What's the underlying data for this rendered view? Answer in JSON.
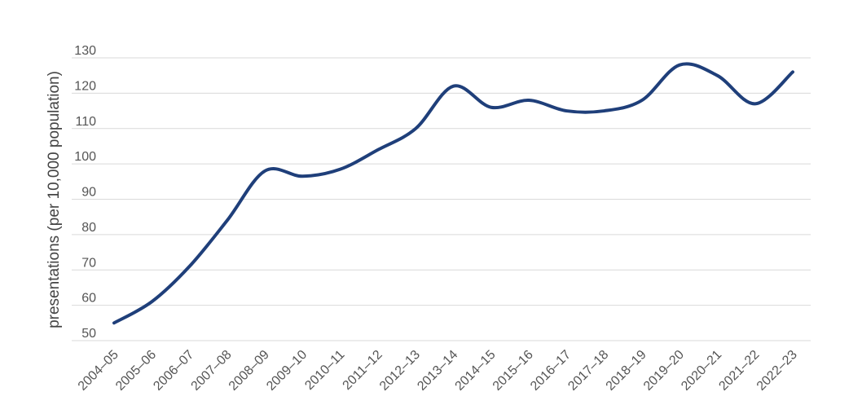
{
  "chart_data": {
    "type": "line",
    "title": "",
    "xlabel": "",
    "ylabel": "presentations (per 10,000 population)",
    "ylim": [
      50,
      130
    ],
    "yticks": [
      50,
      60,
      70,
      80,
      90,
      100,
      110,
      120,
      130
    ],
    "grid": "horizontal",
    "legend": "none",
    "categories": [
      "2004–05",
      "2005–06",
      "2006–07",
      "2007–08",
      "2008–09",
      "2009–10",
      "2010–11",
      "2011–12",
      "2012–13",
      "2013–14",
      "2014–15",
      "2015–16",
      "2016–17",
      "2017–18",
      "2018–19",
      "2019–20",
      "2020–21",
      "2021–22",
      "2022–23"
    ],
    "series": [
      {
        "name": "",
        "color": "#1f3f7a",
        "values": [
          55,
          61,
          71,
          84,
          98,
          96.5,
          98.5,
          104,
          110,
          122,
          116,
          118,
          115,
          115,
          118,
          128,
          125,
          117,
          126
        ]
      }
    ]
  },
  "colors": {
    "grid": "#d9d9d9",
    "text": "#555555"
  }
}
